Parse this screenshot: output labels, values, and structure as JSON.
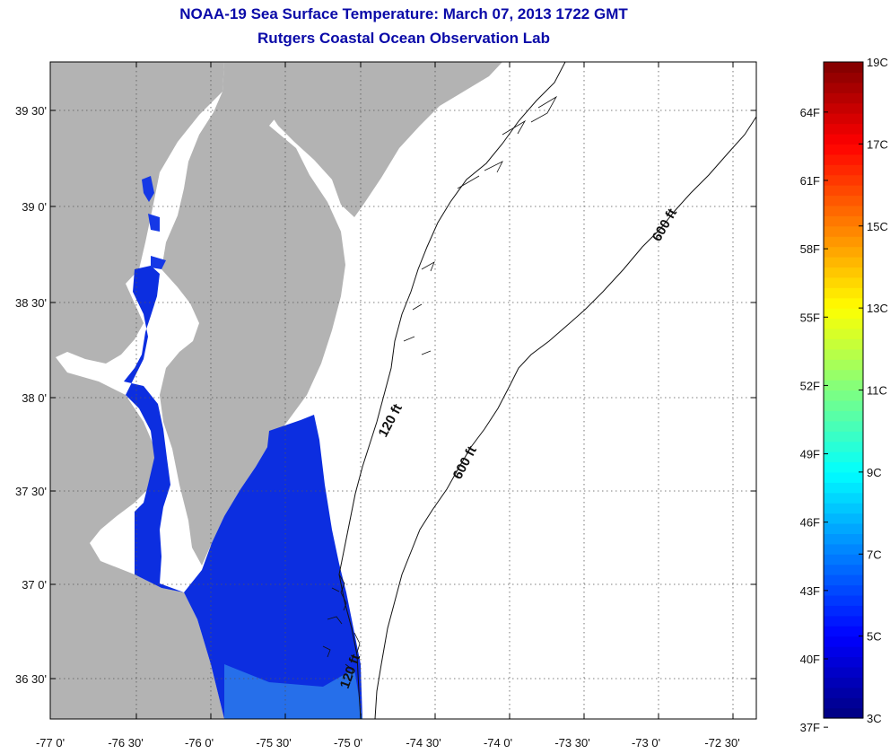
{
  "title": {
    "line1": "NOAA-19 Sea Surface Temperature:  March 07, 2013 1722 GMT",
    "line2": "Rutgers Coastal Ocean Observation Lab"
  },
  "map": {
    "lat_ticks": [
      "39 30'",
      "39 0'",
      "38 30'",
      "38 0'",
      "37 30'",
      "37 0'",
      "36 30'"
    ],
    "lon_ticks": [
      "-77 0'",
      "-76 30'",
      "-76 0'",
      "-75 30'",
      "-75 0'",
      "-74 30'",
      "-74 0'",
      "-73 30'",
      "-73 0'",
      "-72 30'"
    ],
    "contours": {
      "c120_north": "120 ft",
      "c120_south": "120 ft",
      "c600_south": "600 ft",
      "c600_north": "600 ft"
    },
    "colors": {
      "land": "#b3b3b3",
      "water_nodata": "#ffffff",
      "grid": "#555555"
    }
  },
  "colorbar": {
    "fahrenheit": [
      "64F",
      "61F",
      "58F",
      "55F",
      "52F",
      "49F",
      "46F",
      "43F",
      "40F",
      "37F"
    ],
    "celsius": [
      "19C",
      "17C",
      "15C",
      "13C",
      "11C",
      "9C",
      "7C",
      "5C",
      "3C"
    ],
    "range_c": [
      3,
      19
    ]
  }
}
